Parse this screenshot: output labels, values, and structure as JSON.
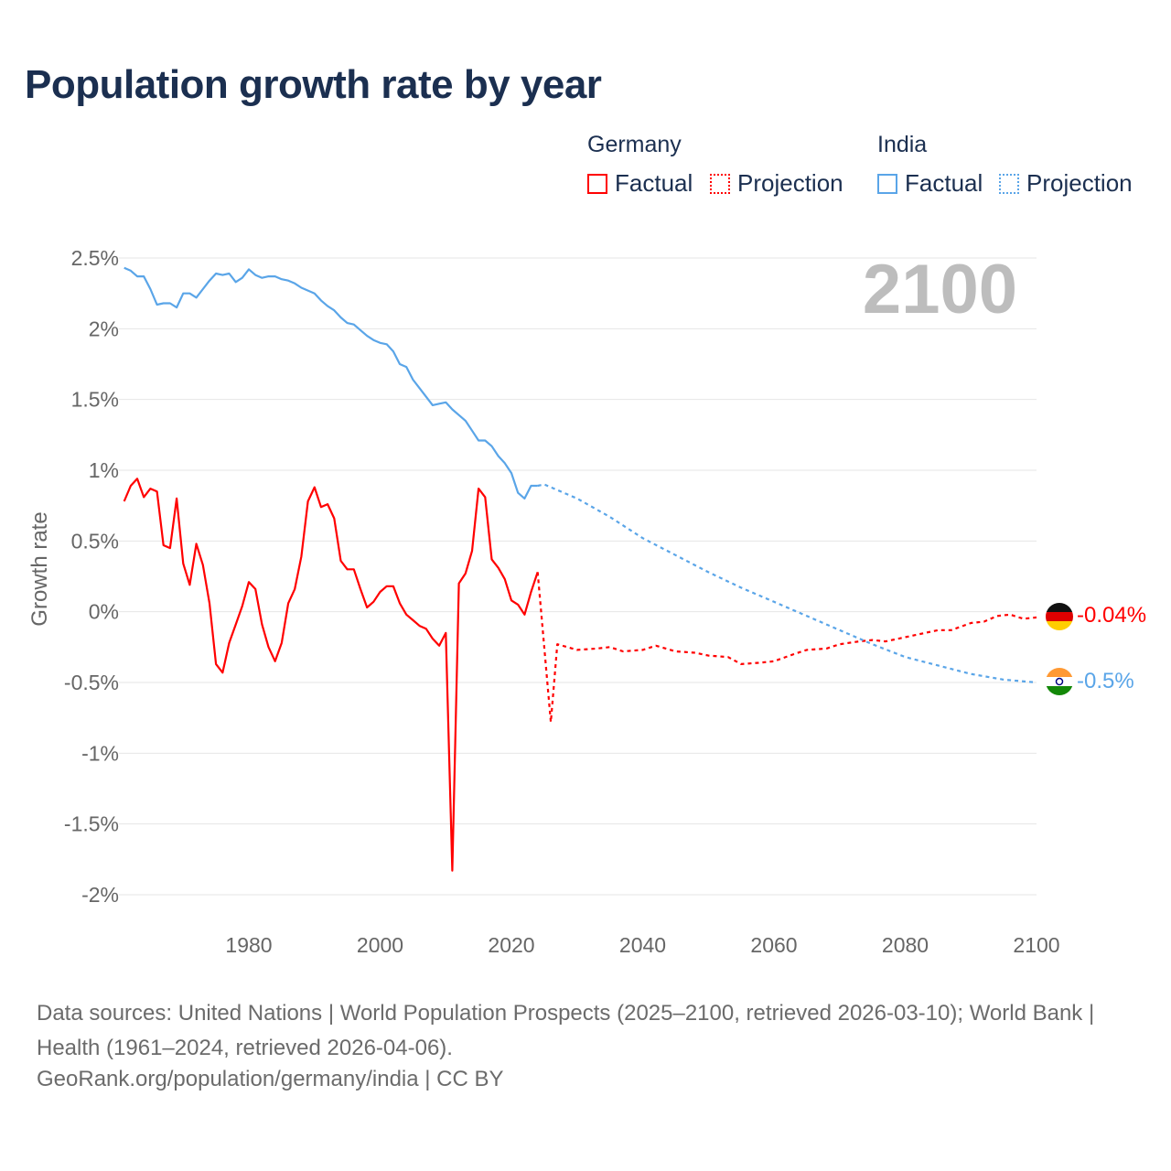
{
  "title": "Population growth rate by year",
  "legend": {
    "groups": [
      {
        "name": "Germany",
        "factual": "Factual",
        "projection": "Projection",
        "color": "#ff0000"
      },
      {
        "name": "India",
        "factual": "Factual",
        "projection": "Projection",
        "color": "#5aa5e8"
      }
    ]
  },
  "year_watermark": "2100",
  "end_labels": {
    "germany": "-0.04%",
    "india": "-0.5%"
  },
  "source_text": "Data sources: United Nations | World Population Prospects (2025–2100, retrieved 2026-03-10); World Bank | Health (1961–2024, retrieved 2026-04-06).",
  "credit_text": "GeoRank.org/population/germany/india | CC BY",
  "chart_data": {
    "type": "line",
    "title": "Population growth rate by year",
    "xlabel": "",
    "ylabel": "Growth rate",
    "xlim": [
      1961,
      2100
    ],
    "ylim": [
      -2.0,
      2.5
    ],
    "x_ticks": [
      1980,
      2000,
      2020,
      2040,
      2060,
      2080,
      2100
    ],
    "y_ticks": [
      2.5,
      2,
      1.5,
      1,
      0.5,
      0,
      -0.5,
      -1,
      -1.5,
      -2
    ],
    "y_tick_labels": [
      "2.5%",
      "2%",
      "1.5%",
      "1%",
      "0.5%",
      "0%",
      "-0.5%",
      "-1%",
      "-1.5%",
      "-2%"
    ],
    "grid": true,
    "legend_position": "top-right",
    "series": [
      {
        "name": "Germany Factual",
        "color": "#ff0000",
        "dashed": false,
        "x": [
          1961,
          1962,
          1963,
          1964,
          1965,
          1966,
          1967,
          1968,
          1969,
          1970,
          1971,
          1972,
          1973,
          1974,
          1975,
          1976,
          1977,
          1978,
          1979,
          1980,
          1981,
          1982,
          1983,
          1984,
          1985,
          1986,
          1987,
          1988,
          1989,
          1990,
          1991,
          1992,
          1993,
          1994,
          1995,
          1996,
          1997,
          1998,
          1999,
          2000,
          2001,
          2002,
          2003,
          2004,
          2005,
          2006,
          2007,
          2008,
          2009,
          2010,
          2011,
          2012,
          2013,
          2014,
          2015,
          2016,
          2017,
          2018,
          2019,
          2020,
          2021,
          2022,
          2023,
          2024
        ],
        "y": [
          0.78,
          0.89,
          0.94,
          0.81,
          0.87,
          0.85,
          0.47,
          0.45,
          0.8,
          0.34,
          0.19,
          0.48,
          0.33,
          0.06,
          -0.37,
          -0.43,
          -0.22,
          -0.09,
          0.04,
          0.21,
          0.16,
          -0.09,
          -0.25,
          -0.35,
          -0.22,
          0.06,
          0.16,
          0.39,
          0.78,
          0.88,
          0.74,
          0.76,
          0.66,
          0.36,
          0.3,
          0.3,
          0.16,
          0.03,
          0.07,
          0.14,
          0.18,
          0.18,
          0.06,
          -0.02,
          -0.06,
          -0.1,
          -0.12,
          -0.19,
          -0.24,
          -0.15,
          -1.83,
          0.2,
          0.27,
          0.43,
          0.87,
          0.81,
          0.37,
          0.31,
          0.23,
          0.08,
          0.05,
          -0.02,
          0.14,
          0.28
        ]
      },
      {
        "name": "Germany Projection",
        "color": "#ff0000",
        "dashed": true,
        "x": [
          2024,
          2025,
          2026,
          2027,
          2030,
          2033,
          2035,
          2037,
          2040,
          2042,
          2045,
          2048,
          2050,
          2053,
          2055,
          2058,
          2060,
          2063,
          2065,
          2068,
          2070,
          2073,
          2075,
          2077,
          2080,
          2083,
          2085,
          2087,
          2090,
          2092,
          2094,
          2096,
          2098,
          2100
        ],
        "y": [
          0.28,
          -0.25,
          -0.78,
          -0.23,
          -0.27,
          -0.26,
          -0.25,
          -0.28,
          -0.27,
          -0.24,
          -0.28,
          -0.29,
          -0.31,
          -0.32,
          -0.37,
          -0.36,
          -0.35,
          -0.3,
          -0.27,
          -0.26,
          -0.23,
          -0.21,
          -0.2,
          -0.21,
          -0.18,
          -0.15,
          -0.13,
          -0.13,
          -0.08,
          -0.07,
          -0.03,
          -0.02,
          -0.05,
          -0.04
        ]
      },
      {
        "name": "India Factual",
        "color": "#5aa5e8",
        "dashed": false,
        "x": [
          1961,
          1962,
          1963,
          1964,
          1965,
          1966,
          1967,
          1968,
          1969,
          1970,
          1971,
          1972,
          1973,
          1974,
          1975,
          1976,
          1977,
          1978,
          1979,
          1980,
          1981,
          1982,
          1983,
          1984,
          1985,
          1986,
          1987,
          1988,
          1989,
          1990,
          1991,
          1992,
          1993,
          1994,
          1995,
          1996,
          1997,
          1998,
          1999,
          2000,
          2001,
          2002,
          2003,
          2004,
          2005,
          2006,
          2007,
          2008,
          2009,
          2010,
          2011,
          2012,
          2013,
          2014,
          2015,
          2016,
          2017,
          2018,
          2019,
          2020,
          2021,
          2022,
          2023,
          2024
        ],
        "y": [
          2.43,
          2.41,
          2.37,
          2.37,
          2.28,
          2.17,
          2.18,
          2.18,
          2.15,
          2.25,
          2.25,
          2.22,
          2.28,
          2.34,
          2.39,
          2.38,
          2.39,
          2.33,
          2.36,
          2.42,
          2.38,
          2.36,
          2.37,
          2.37,
          2.35,
          2.34,
          2.32,
          2.29,
          2.27,
          2.25,
          2.2,
          2.16,
          2.13,
          2.08,
          2.04,
          2.03,
          1.99,
          1.95,
          1.92,
          1.9,
          1.89,
          1.84,
          1.75,
          1.73,
          1.64,
          1.58,
          1.52,
          1.46,
          1.47,
          1.48,
          1.43,
          1.39,
          1.35,
          1.28,
          1.21,
          1.21,
          1.17,
          1.1,
          1.05,
          0.98,
          0.84,
          0.8,
          0.89,
          0.89
        ]
      },
      {
        "name": "India Projection",
        "color": "#5aa5e8",
        "dashed": true,
        "x": [
          2024,
          2025,
          2030,
          2035,
          2040,
          2045,
          2050,
          2055,
          2060,
          2065,
          2070,
          2075,
          2080,
          2085,
          2090,
          2095,
          2100
        ],
        "y": [
          0.89,
          0.9,
          0.8,
          0.67,
          0.52,
          0.4,
          0.28,
          0.17,
          0.07,
          -0.03,
          -0.13,
          -0.23,
          -0.32,
          -0.38,
          -0.44,
          -0.48,
          -0.5
        ]
      }
    ]
  }
}
